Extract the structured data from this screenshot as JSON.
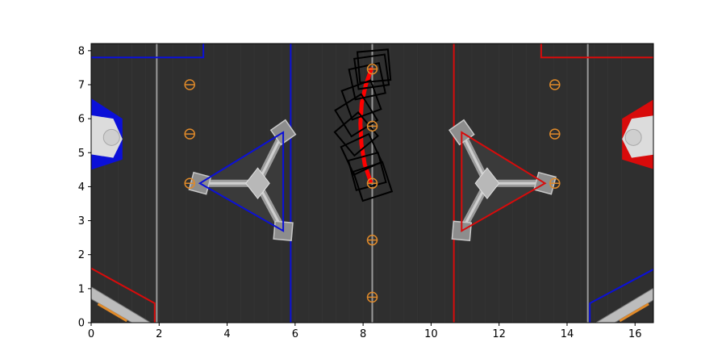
{
  "chart_data": {
    "type": "scatter",
    "title": "",
    "xlabel": "",
    "ylabel": "",
    "xlim": [
      0,
      16.54
    ],
    "ylim": [
      0,
      8.21
    ],
    "x_ticks": [
      0,
      2,
      4,
      6,
      8,
      10,
      12,
      14,
      16
    ],
    "y_ticks": [
      0,
      1,
      2,
      3,
      4,
      5,
      6,
      7,
      8
    ],
    "grid": false,
    "legend": "none",
    "colors": {
      "field": "#2f2f2f",
      "blue": "#0b10d8",
      "red": "#d80b0b",
      "note_ring": "#e08a2a",
      "robot_outline": "#000000",
      "path": "#ff0000",
      "center_line": "#9a9a9a"
    },
    "background_image": "FRC 2024 field (top view)",
    "note_positions": {
      "x": [
        2.9,
        2.9,
        2.9,
        8.27,
        8.27,
        8.27,
        8.27,
        8.27,
        13.64,
        13.64,
        13.64
      ],
      "y": [
        4.1,
        5.55,
        7.0,
        0.75,
        2.43,
        4.1,
        5.78,
        7.46,
        4.1,
        5.55,
        7.0
      ]
    },
    "trajectory": {
      "x": [
        8.22,
        8.05,
        7.95,
        7.92,
        7.96,
        8.08,
        8.24
      ],
      "y": [
        4.15,
        4.65,
        5.25,
        5.85,
        6.45,
        7.0,
        7.45
      ]
    },
    "robot_poses": [
      {
        "x": 8.28,
        "y": 4.15,
        "heading_deg": 18
      },
      {
        "x": 8.12,
        "y": 4.45,
        "heading_deg": 15
      },
      {
        "x": 7.95,
        "y": 4.95,
        "heading_deg": 25
      },
      {
        "x": 7.8,
        "y": 5.55,
        "heading_deg": 40
      },
      {
        "x": 7.8,
        "y": 6.1,
        "heading_deg": 32
      },
      {
        "x": 7.95,
        "y": 6.55,
        "heading_deg": 20
      },
      {
        "x": 8.12,
        "y": 7.1,
        "heading_deg": 12
      },
      {
        "x": 8.25,
        "y": 7.38,
        "heading_deg": 8
      },
      {
        "x": 8.32,
        "y": 7.55,
        "heading_deg": 5
      }
    ]
  }
}
